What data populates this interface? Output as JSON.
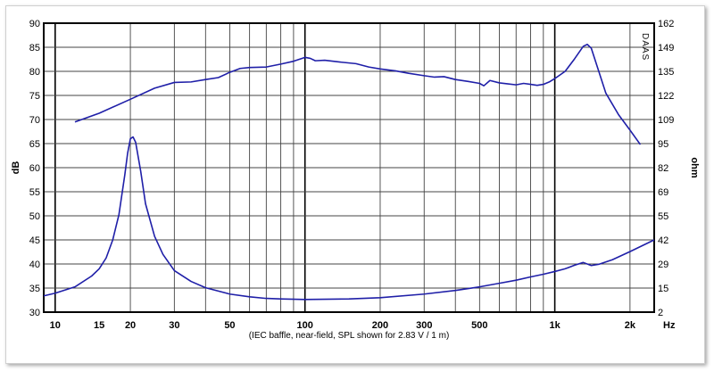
{
  "chart_data": {
    "type": "line",
    "xlabel": "Hz",
    "ylabel_left": "dB",
    "ylabel_right": "ohm",
    "caption": "(IEC baffle, near-field, SPL shown for 2.83 V / 1 m)",
    "watermark": "DAAS",
    "x_scale": "log",
    "xlim": [
      9,
      2500
    ],
    "ylim_left": [
      30,
      90
    ],
    "ylim_right": [
      2,
      162
    ],
    "grid": true,
    "x_tick_labels": [
      "10",
      "15",
      "20",
      "30",
      "50",
      "100",
      "200",
      "300",
      "500",
      "1k",
      "2k"
    ],
    "x_tick_values": [
      10,
      15,
      20,
      30,
      50,
      100,
      200,
      300,
      500,
      1000,
      2000
    ],
    "y_left_ticks": [
      90,
      85,
      80,
      75,
      70,
      65,
      60,
      55,
      50,
      45,
      40,
      35,
      30
    ],
    "y_right_ticks": [
      "162",
      "149",
      "135",
      "122",
      "109",
      "95",
      "82",
      "69",
      "55",
      "42",
      "29",
      "15",
      "2"
    ],
    "line_color": "#1f1fa8",
    "series": [
      {
        "axis": "left",
        "points": [
          [
            12,
            69.5
          ],
          [
            15,
            71.3
          ],
          [
            20,
            74.2
          ],
          [
            25,
            76.5
          ],
          [
            30,
            77.7
          ],
          [
            35,
            77.8
          ],
          [
            40,
            78.3
          ],
          [
            45,
            78.7
          ],
          [
            50,
            79.8
          ],
          [
            55,
            80.6
          ],
          [
            60,
            80.8
          ],
          [
            70,
            80.9
          ],
          [
            80,
            81.5
          ],
          [
            90,
            82.1
          ],
          [
            100,
            82.9
          ],
          [
            105,
            82.7
          ],
          [
            110,
            82.2
          ],
          [
            120,
            82.3
          ],
          [
            140,
            81.9
          ],
          [
            160,
            81.6
          ],
          [
            180,
            80.9
          ],
          [
            200,
            80.5
          ],
          [
            230,
            80.1
          ],
          [
            260,
            79.6
          ],
          [
            300,
            79.1
          ],
          [
            330,
            78.8
          ],
          [
            360,
            78.9
          ],
          [
            400,
            78.3
          ],
          [
            450,
            77.9
          ],
          [
            500,
            77.5
          ],
          [
            520,
            77.0
          ],
          [
            550,
            78.1
          ],
          [
            600,
            77.6
          ],
          [
            650,
            77.4
          ],
          [
            700,
            77.2
          ],
          [
            750,
            77.5
          ],
          [
            800,
            77.3
          ],
          [
            850,
            77.1
          ],
          [
            900,
            77.3
          ],
          [
            950,
            77.8
          ],
          [
            1000,
            78.5
          ],
          [
            1100,
            80.0
          ],
          [
            1200,
            82.6
          ],
          [
            1300,
            85.2
          ],
          [
            1350,
            85.6
          ],
          [
            1400,
            84.8
          ],
          [
            1500,
            80.0
          ],
          [
            1600,
            75.5
          ],
          [
            1800,
            71.0
          ],
          [
            2000,
            67.8
          ],
          [
            2200,
            64.8
          ]
        ]
      },
      {
        "axis": "right",
        "points": [
          [
            9,
            11
          ],
          [
            10,
            12.5
          ],
          [
            12,
            16
          ],
          [
            14,
            22
          ],
          [
            15,
            26
          ],
          [
            16,
            32
          ],
          [
            17,
            42
          ],
          [
            18,
            56
          ],
          [
            19,
            78
          ],
          [
            19.5,
            90
          ],
          [
            20,
            98
          ],
          [
            20.5,
            99
          ],
          [
            21,
            96
          ],
          [
            22,
            80
          ],
          [
            23,
            62
          ],
          [
            25,
            44
          ],
          [
            27,
            34
          ],
          [
            30,
            25
          ],
          [
            35,
            19
          ],
          [
            40,
            15.5
          ],
          [
            50,
            12
          ],
          [
            60,
            10.5
          ],
          [
            70,
            9.6
          ],
          [
            80,
            9.3
          ],
          [
            100,
            9.0
          ],
          [
            150,
            9.3
          ],
          [
            200,
            10.0
          ],
          [
            300,
            12.0
          ],
          [
            400,
            14.0
          ],
          [
            500,
            16.0
          ],
          [
            600,
            18.0
          ],
          [
            700,
            19.7
          ],
          [
            800,
            21.5
          ],
          [
            900,
            23.0
          ],
          [
            1000,
            24.5
          ],
          [
            1100,
            26.0
          ],
          [
            1200,
            28.0
          ],
          [
            1300,
            29.5
          ],
          [
            1400,
            27.8
          ],
          [
            1500,
            28.5
          ],
          [
            1700,
            31.0
          ],
          [
            2000,
            35.5
          ],
          [
            2500,
            42
          ]
        ]
      }
    ]
  }
}
